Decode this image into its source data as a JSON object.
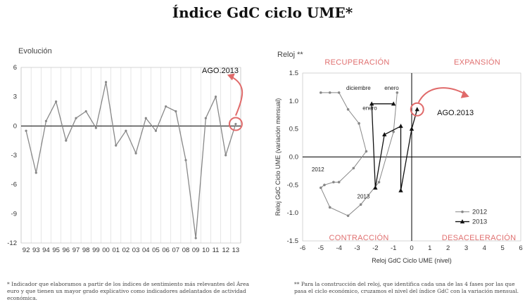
{
  "title": "Índice GdC ciclo UME*",
  "footnotes": {
    "left": "* Indicador que elaboramos a partir de los índices de sentimiento más relevantes del Área euro y que tienen un mayor grado explicativo como indicadores adelantados de actividad económica.",
    "right": "** Para la construcción del reloj, que identifica cada una de las 4 fases por las que pasa el ciclo económico, cruzamos el nivel del índice GdC con la variación mensual."
  },
  "colors": {
    "line": "#888888",
    "accent": "#e06a6a",
    "dark": "#111111"
  },
  "chart_data": [
    {
      "type": "line",
      "title": "Evolución",
      "x": [
        "92",
        "93",
        "94",
        "95",
        "96",
        "97",
        "98",
        "99",
        "00",
        "01",
        "02",
        "03",
        "04",
        "05",
        "06",
        "07",
        "08",
        "09",
        "10",
        "11",
        "12",
        "13"
      ],
      "ylim": [
        -12,
        6
      ],
      "yticks": [
        6,
        3,
        0,
        -3,
        -6,
        -9,
        -12
      ],
      "annotation": "AGO.2013",
      "series": [
        {
          "values": [
            -0.5,
            -4.8,
            0.5,
            2.5,
            -1.5,
            0.8,
            1.5,
            -0.2,
            4.5,
            -2.0,
            -0.5,
            -2.8,
            0.8,
            -0.5,
            2.0,
            1.5,
            -3.5,
            -11.5,
            0.8,
            3.0,
            -3.0,
            0.2
          ]
        }
      ]
    },
    {
      "type": "scatter",
      "title": "Reloj **",
      "xlabel": "Reloj GdC Ciclo UME (nivel)",
      "ylabel": "Reloj GdC Ciclo UME (variación mensual)",
      "xlim": [
        -6,
        6
      ],
      "ylim": [
        -1.5,
        1.5
      ],
      "xticks": [
        -6,
        -5,
        -4,
        -3,
        -2,
        -1,
        0,
        1,
        2,
        3,
        4,
        5,
        6
      ],
      "yticks": [
        1.5,
        1.0,
        0.5,
        0.0,
        -0.5,
        -1.0,
        -1.5
      ],
      "quadrants": {
        "top_left": "RECUPERACIÓN",
        "top_right": "EXPANSIÓN",
        "bottom_left": "CONTRACCIÓN",
        "bottom_right": "DESACELERACIÓN"
      },
      "annotation": "AGO.2013",
      "point_labels": {
        "diciembre": "diciembre",
        "enero_2012": "enero",
        "enero_2013": "enero",
        "enero_b": "enero",
        "year_2012": "2012",
        "year_2013": "2013"
      },
      "series": [
        {
          "name": "2012",
          "x": [
            -0.8,
            -1.0,
            -1.8,
            -2.8,
            -3.5,
            -4.5,
            -5.0,
            -4.8,
            -4.3,
            -4.0,
            -3.2,
            -2.5,
            -2.9,
            -3.5,
            -4.0,
            -4.5,
            -5.0
          ],
          "y": [
            1.15,
            0.45,
            -0.45,
            -0.85,
            -1.05,
            -0.9,
            -0.55,
            -0.5,
            -0.45,
            -0.45,
            -0.2,
            0.1,
            0.6,
            0.85,
            1.15,
            1.15,
            1.15
          ]
        },
        {
          "name": "2013",
          "x": [
            -1.0,
            -2.2,
            -2.0,
            -1.5,
            -0.6,
            -0.6,
            0.0,
            0.3
          ],
          "y": [
            0.95,
            0.95,
            -0.55,
            0.4,
            0.55,
            -0.6,
            0.5,
            0.85
          ]
        }
      ]
    }
  ]
}
